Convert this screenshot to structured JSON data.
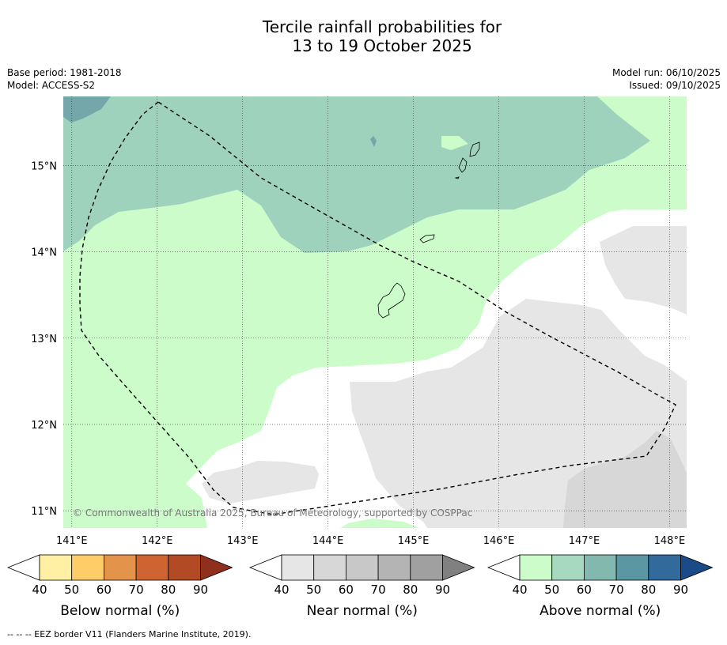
{
  "title": {
    "line1": "Tercile rainfall probabilities for",
    "line2": "13 to 19 October 2025"
  },
  "meta_left": {
    "base_period": "Base period: 1981-2018",
    "model": "Model: ACCESS-S2"
  },
  "meta_right": {
    "model_run": "Model run: 06/10/2025",
    "issued": "Issued: 09/10/2025"
  },
  "map": {
    "lon_labels": [
      "141°E",
      "142°E",
      "143°E",
      "144°E",
      "145°E",
      "146°E",
      "147°E",
      "148°E"
    ],
    "lat_labels": [
      "15°N",
      "14°N",
      "13°N",
      "12°N",
      "11°N"
    ],
    "lon_range": [
      140.9,
      148.2
    ],
    "lat_range": [
      10.8,
      15.8
    ],
    "copyright": "© Commonwealth of Australia 2025, Bureau of Meteorology, supported by COSPPac",
    "grid": "dotted",
    "colors": {
      "above_50": "#ccfcca",
      "above_60": "#9fd2bc",
      "above_70": "#74a7a9",
      "near_40": "#e6e6e6",
      "near_50": "#d7d7d7",
      "land_outline": "#000000"
    }
  },
  "legends": [
    {
      "label": "Below normal (%)",
      "ticks": [
        "40",
        "50",
        "60",
        "70",
        "80",
        "90"
      ],
      "colors": [
        "#ffffff",
        "#fff0a3",
        "#ffcd68",
        "#e3944a",
        "#cf6332",
        "#b34a26",
        "#8f2f1d"
      ]
    },
    {
      "label": "Near normal (%)",
      "ticks": [
        "40",
        "50",
        "60",
        "70",
        "80",
        "90"
      ],
      "colors": [
        "#ffffff",
        "#e6e6e6",
        "#d7d7d7",
        "#c8c8c8",
        "#b4b4b4",
        "#a0a0a0",
        "#808080"
      ]
    },
    {
      "label": "Above normal (%)",
      "ticks": [
        "40",
        "50",
        "60",
        "70",
        "80",
        "90"
      ],
      "colors": [
        "#ffffff",
        "#ccfcca",
        "#a7d8c0",
        "#82b8ae",
        "#5a97a3",
        "#336a9c",
        "#1a4a87"
      ]
    }
  ],
  "footnote": "--  --  -- EEZ border V11 (Flanders Marine Institute, 2019)."
}
